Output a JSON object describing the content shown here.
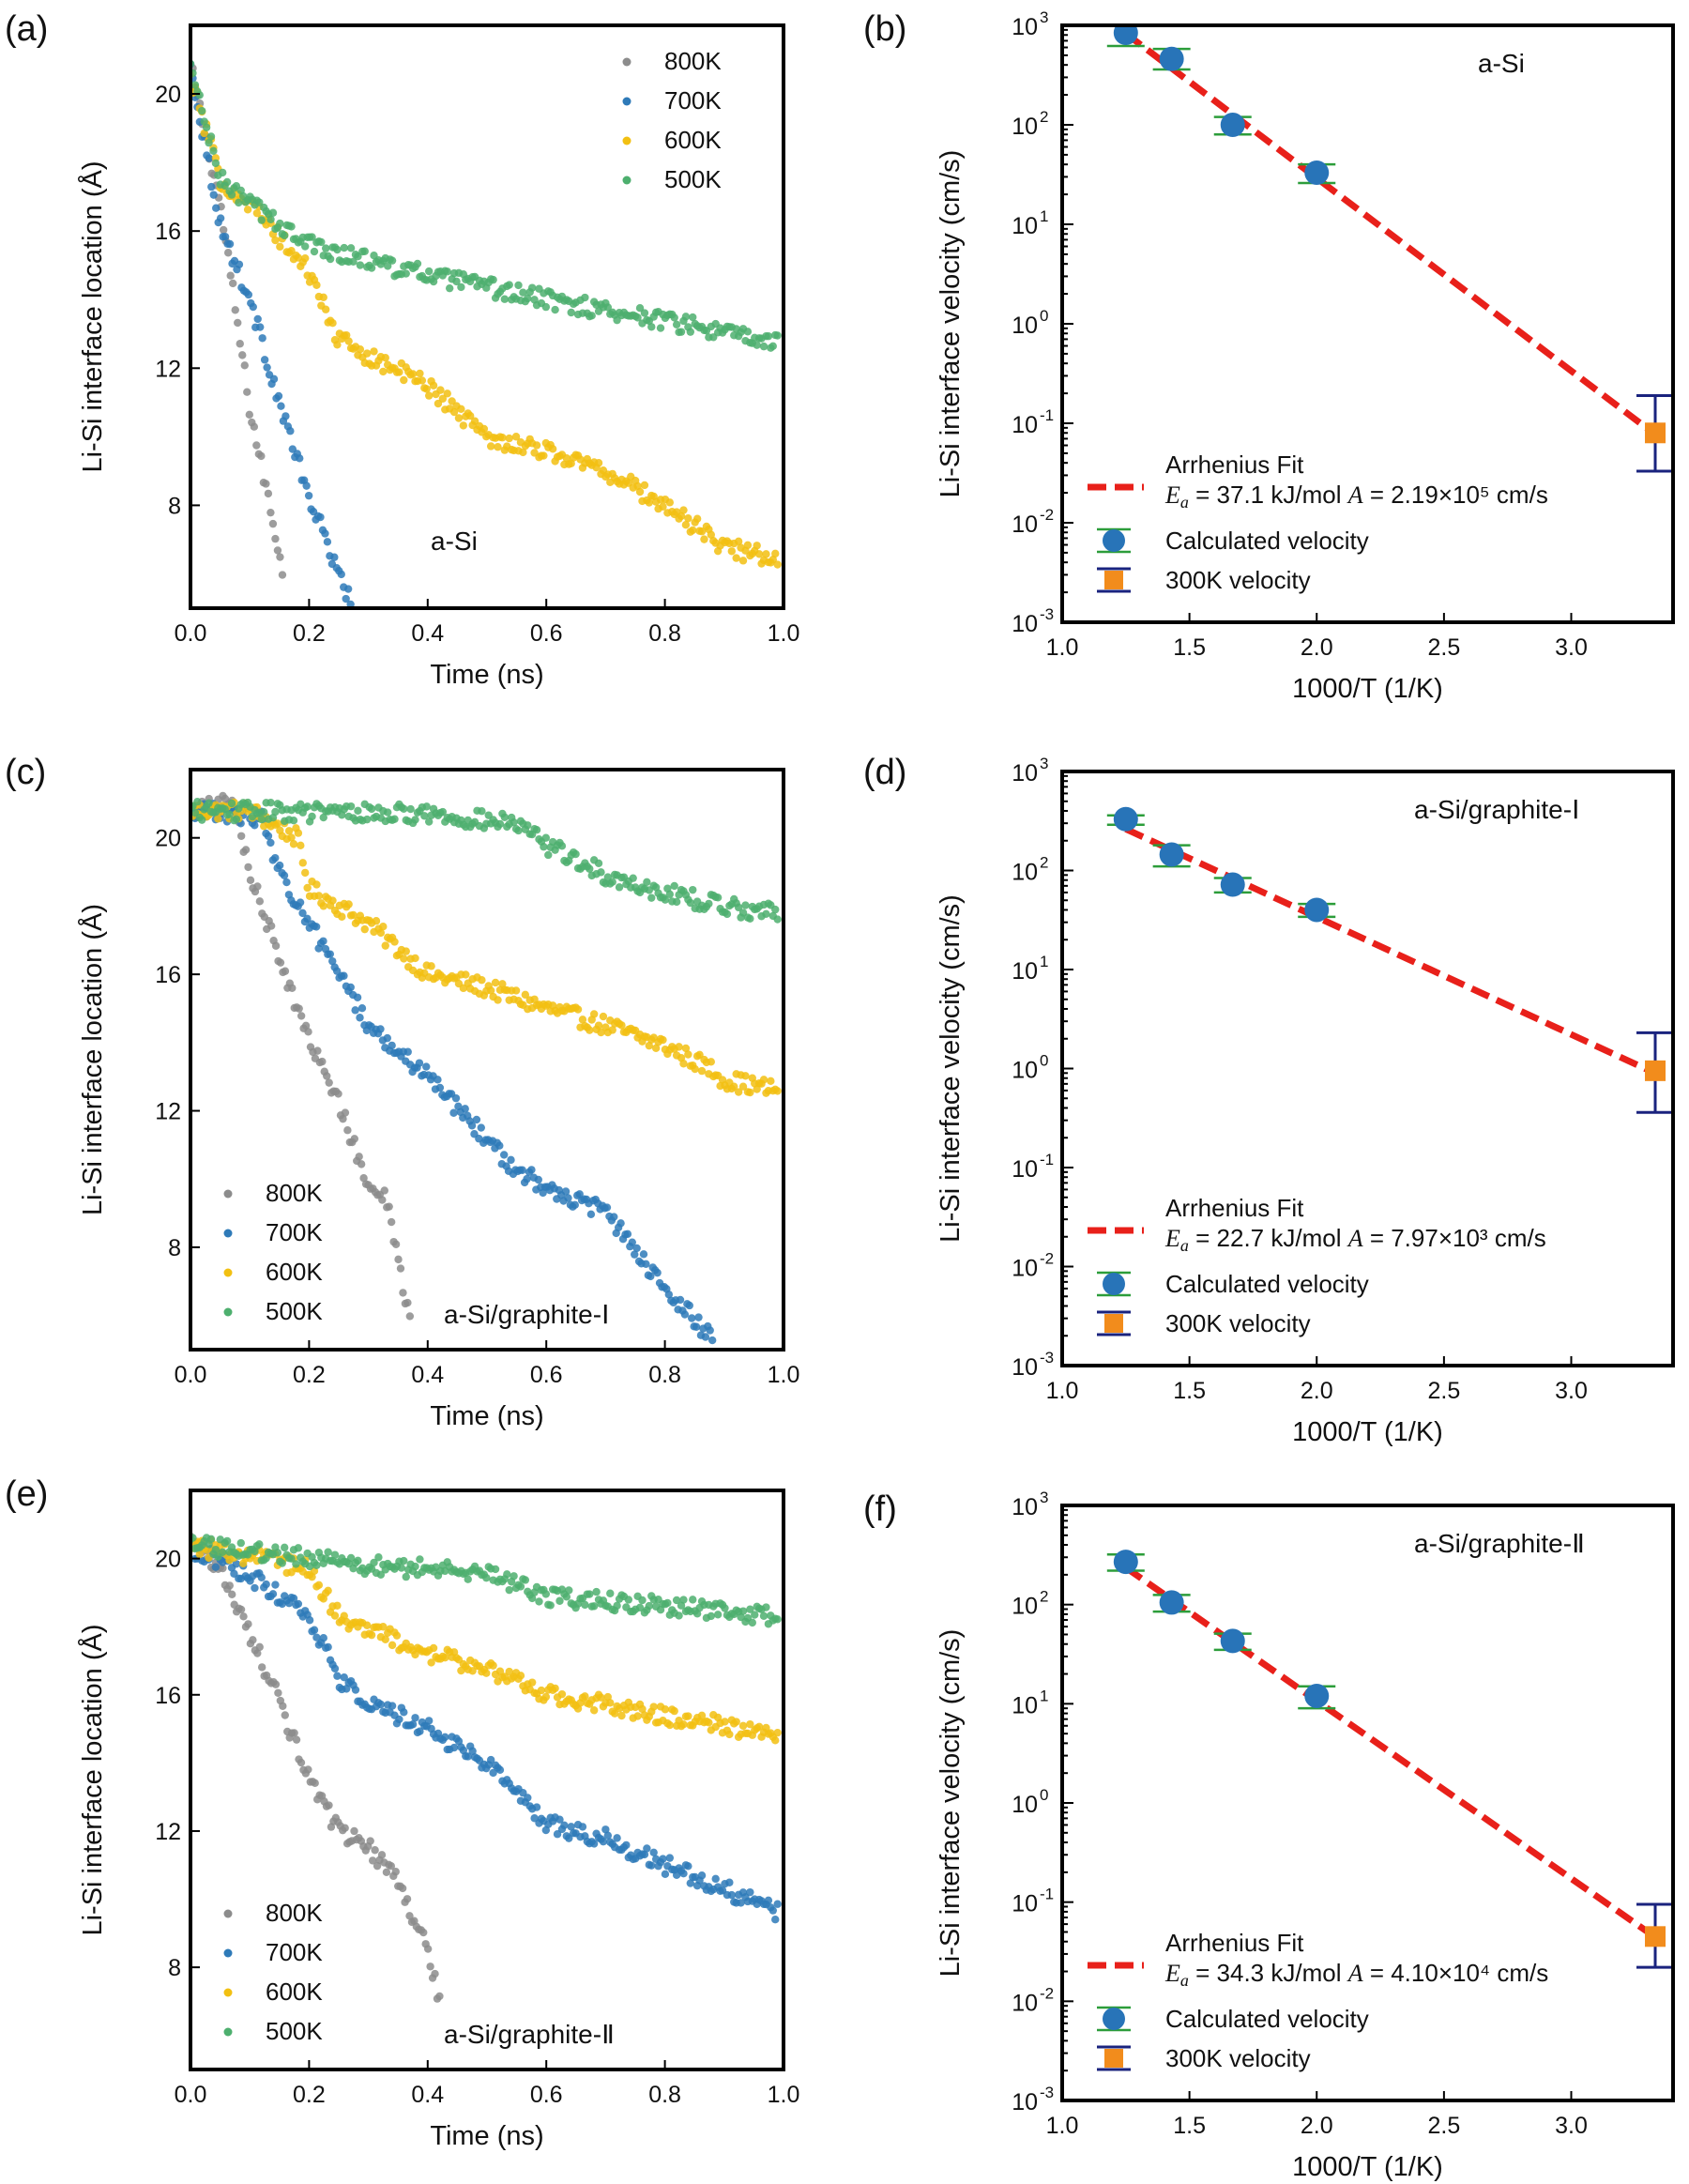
{
  "chart_data": [
    {
      "panel": "(a)",
      "type": "scatter",
      "xlabel": "Time (ns)",
      "ylabel": "Li-Si interface location (Å)",
      "xlim": [
        0.0,
        1.0
      ],
      "ylim": [
        5.0,
        22.0
      ],
      "xticks": [
        "0.0",
        "0.2",
        "0.4",
        "0.6",
        "0.8",
        "1.0"
      ],
      "yticks": [
        "8",
        "12",
        "16",
        "20"
      ],
      "annotation": "a-Si",
      "legend_placement": "top-right",
      "series": [
        {
          "name": "800K",
          "color": "#8c8c8c",
          "t_end": 0.155,
          "anchors": [
            [
              0.0,
              20.8
            ],
            [
              0.05,
              16.8
            ],
            [
              0.1,
              10.8
            ],
            [
              0.155,
              6.2
            ]
          ]
        },
        {
          "name": "700K",
          "color": "#2e7ab8",
          "t_end": 0.27,
          "anchors": [
            [
              0.0,
              20.8
            ],
            [
              0.05,
              16.2
            ],
            [
              0.1,
              14.0
            ],
            [
              0.15,
              11.0
            ],
            [
              0.2,
              8.2
            ],
            [
              0.27,
              5.2
            ]
          ]
        },
        {
          "name": "600K",
          "color": "#f2c012",
          "t_end": 0.99,
          "anchors": [
            [
              0.0,
              20.5
            ],
            [
              0.05,
              17.5
            ],
            [
              0.1,
              16.8
            ],
            [
              0.2,
              14.8
            ],
            [
              0.25,
              12.8
            ],
            [
              0.4,
              11.5
            ],
            [
              0.5,
              10.0
            ],
            [
              0.6,
              9.6
            ],
            [
              0.7,
              9.0
            ],
            [
              0.8,
              8.0
            ],
            [
              0.9,
              6.8
            ],
            [
              0.99,
              6.4
            ]
          ]
        },
        {
          "name": "500K",
          "color": "#4daf6e",
          "t_end": 0.99,
          "anchors": [
            [
              0.0,
              20.8
            ],
            [
              0.05,
              17.5
            ],
            [
              0.1,
              16.8
            ],
            [
              0.2,
              15.6
            ],
            [
              0.4,
              14.7
            ],
            [
              0.6,
              14.0
            ],
            [
              0.8,
              13.4
            ],
            [
              0.99,
              12.7
            ]
          ]
        }
      ]
    },
    {
      "panel": "(b)",
      "type": "scatter",
      "xlabel": "1000/T (1/K)",
      "ylabel": "Li-Si interface velocity (cm/s)",
      "xlim": [
        1.0,
        3.4
      ],
      "ylim_log10": [
        -3,
        3
      ],
      "yscale": "log",
      "xticks": [
        "1.0",
        "1.5",
        "2.0",
        "2.5",
        "3.0"
      ],
      "annotation": "a-Si",
      "fit": {
        "label": "Arrhenius Fit",
        "Ea_kJ_per_mol": 37.1,
        "A_cm_per_s": 219000,
        "Ea_text": " = 37.1 kJ/mol  ",
        "A_text": " = 2.19×10⁵ cm/s",
        "x_range": [
          1.25,
          3.33
        ]
      },
      "calculated": {
        "label": "Calculated velocity",
        "x": [
          1.25,
          1.43,
          1.67,
          2.0
        ],
        "y": [
          840,
          460,
          100,
          33
        ],
        "y_low": [
          620,
          360,
          80,
          26
        ],
        "y_high": [
          1000,
          580,
          120,
          40
        ]
      },
      "room_temp": {
        "label": "300K velocity",
        "x": 3.33,
        "y": 0.08,
        "y_low": 0.033,
        "y_high": 0.19
      }
    },
    {
      "panel": "(c)",
      "type": "scatter",
      "xlabel": "Time (ns)",
      "ylabel": "Li-Si interface location  (Å)",
      "xlim": [
        0.0,
        1.0
      ],
      "ylim": [
        5.0,
        22.0
      ],
      "xticks": [
        "0.0",
        "0.2",
        "0.4",
        "0.6",
        "0.8",
        "1.0"
      ],
      "yticks": [
        "8",
        "12",
        "16",
        "20"
      ],
      "annotation": "a-Si/graphite-Ⅰ",
      "legend_placement": "bottom-left",
      "series": [
        {
          "name": "800K",
          "color": "#8c8c8c",
          "t_end": 0.37,
          "anchors": [
            [
              0.0,
              20.8
            ],
            [
              0.07,
              21.0
            ],
            [
              0.1,
              19.0
            ],
            [
              0.2,
              14.0
            ],
            [
              0.25,
              12.2
            ],
            [
              0.3,
              9.8
            ],
            [
              0.33,
              9.5
            ],
            [
              0.37,
              5.8
            ]
          ]
        },
        {
          "name": "700K",
          "color": "#2e7ab8",
          "t_end": 0.88,
          "anchors": [
            [
              0.0,
              20.8
            ],
            [
              0.12,
              20.6
            ],
            [
              0.15,
              19.0
            ],
            [
              0.2,
              17.5
            ],
            [
              0.3,
              14.5
            ],
            [
              0.4,
              13.0
            ],
            [
              0.5,
              11.2
            ],
            [
              0.55,
              10.2
            ],
            [
              0.7,
              9.0
            ],
            [
              0.8,
              6.8
            ],
            [
              0.88,
              5.3
            ]
          ]
        },
        {
          "name": "600K",
          "color": "#f2c012",
          "t_end": 0.99,
          "anchors": [
            [
              0.0,
              20.8
            ],
            [
              0.1,
              20.8
            ],
            [
              0.18,
              20.0
            ],
            [
              0.2,
              18.5
            ],
            [
              0.3,
              17.5
            ],
            [
              0.4,
              16.0
            ],
            [
              0.5,
              15.6
            ],
            [
              0.6,
              15.0
            ],
            [
              0.7,
              14.5
            ],
            [
              0.8,
              13.9
            ],
            [
              0.88,
              13.2
            ],
            [
              0.9,
              12.9
            ],
            [
              0.99,
              12.6
            ]
          ]
        },
        {
          "name": "500K",
          "color": "#4daf6e",
          "t_end": 0.99,
          "anchors": [
            [
              0.0,
              20.8
            ],
            [
              0.4,
              20.7
            ],
            [
              0.55,
              20.4
            ],
            [
              0.6,
              19.8
            ],
            [
              0.7,
              18.9
            ],
            [
              0.8,
              18.4
            ],
            [
              0.9,
              18.0
            ],
            [
              0.99,
              17.8
            ]
          ]
        }
      ]
    },
    {
      "panel": "(d)",
      "type": "scatter",
      "xlabel": "1000/T (1/K)",
      "ylabel": "Li-Si interface velocity (cm/s)",
      "xlim": [
        1.0,
        3.4
      ],
      "ylim_log10": [
        -3,
        3
      ],
      "yscale": "log",
      "xticks": [
        "1.0",
        "1.5",
        "2.0",
        "2.5",
        "3.0"
      ],
      "annotation": "a-Si/graphite-Ⅰ",
      "fit": {
        "label": "Arrhenius Fit",
        "Ea_kJ_per_mol": 22.7,
        "A_cm_per_s": 7970,
        "Ea_text": " = 22.7 kJ/mol  ",
        "A_text": " = 7.97×10³ cm/s",
        "x_range": [
          1.25,
          3.33
        ]
      },
      "calculated": {
        "label": "Calculated velocity",
        "x": [
          1.25,
          1.43,
          1.67,
          2.0
        ],
        "y": [
          330,
          145,
          72,
          40
        ],
        "y_low": [
          290,
          110,
          60,
          34
        ],
        "y_high": [
          360,
          180,
          84,
          46
        ]
      },
      "room_temp": {
        "label": "300K velocity",
        "x": 3.33,
        "y": 0.95,
        "y_low": 0.36,
        "y_high": 2.3
      }
    },
    {
      "panel": "(e)",
      "type": "scatter",
      "xlabel": "Time (ns)",
      "ylabel": "Li-Si interface location  (Å)",
      "xlim": [
        0.0,
        1.0
      ],
      "ylim": [
        5.0,
        22.0
      ],
      "xticks": [
        "0.0",
        "0.2",
        "0.4",
        "0.6",
        "0.8",
        "1.0"
      ],
      "yticks": [
        "8",
        "12",
        "16",
        "20"
      ],
      "annotation": "a-Si/graphite-Ⅱ",
      "legend_placement": "bottom-left",
      "series": [
        {
          "name": "800K",
          "color": "#8c8c8c",
          "t_end": 0.42,
          "anchors": [
            [
              0.0,
              20.5
            ],
            [
              0.05,
              19.8
            ],
            [
              0.1,
              17.8
            ],
            [
              0.15,
              15.8
            ],
            [
              0.2,
              13.5
            ],
            [
              0.25,
              12.0
            ],
            [
              0.3,
              11.5
            ],
            [
              0.35,
              10.5
            ],
            [
              0.4,
              8.5
            ],
            [
              0.42,
              7.0
            ]
          ]
        },
        {
          "name": "700K",
          "color": "#2e7ab8",
          "t_end": 0.99,
          "anchors": [
            [
              0.0,
              20.3
            ],
            [
              0.1,
              19.5
            ],
            [
              0.2,
              18.3
            ],
            [
              0.25,
              16.5
            ],
            [
              0.3,
              15.8
            ],
            [
              0.4,
              15.0
            ],
            [
              0.5,
              14.0
            ],
            [
              0.6,
              12.2
            ],
            [
              0.7,
              11.8
            ],
            [
              0.8,
              11.0
            ],
            [
              0.9,
              10.3
            ],
            [
              0.99,
              9.6
            ]
          ]
        },
        {
          "name": "600K",
          "color": "#f2c012",
          "t_end": 0.99,
          "anchors": [
            [
              0.0,
              20.4
            ],
            [
              0.2,
              19.7
            ],
            [
              0.25,
              18.3
            ],
            [
              0.4,
              17.2
            ],
            [
              0.5,
              16.8
            ],
            [
              0.6,
              16.0
            ],
            [
              0.7,
              15.7
            ],
            [
              0.8,
              15.4
            ],
            [
              0.99,
              14.8
            ]
          ]
        },
        {
          "name": "500K",
          "color": "#4daf6e",
          "t_end": 0.99,
          "anchors": [
            [
              0.0,
              20.4
            ],
            [
              0.3,
              19.8
            ],
            [
              0.5,
              19.6
            ],
            [
              0.6,
              18.9
            ],
            [
              0.8,
              18.6
            ],
            [
              0.99,
              18.3
            ]
          ]
        }
      ]
    },
    {
      "panel": "(f)",
      "type": "scatter",
      "xlabel": "1000/T (1/K)",
      "ylabel": "Li-Si interface velocity (cm/s)",
      "xlim": [
        1.0,
        3.4
      ],
      "ylim_log10": [
        -3,
        3
      ],
      "yscale": "log",
      "xticks": [
        "1.0",
        "1.5",
        "2.0",
        "2.5",
        "3.0"
      ],
      "annotation": "a-Si/graphite-Ⅱ",
      "fit": {
        "label": "Arrhenius Fit",
        "Ea_kJ_per_mol": 34.3,
        "A_cm_per_s": 41000,
        "Ea_text": " = 34.3 kJ/mol  ",
        "A_text": " = 4.10×10⁴ cm/s",
        "x_range": [
          1.25,
          3.33
        ]
      },
      "calculated": {
        "label": "Calculated velocity",
        "x": [
          1.25,
          1.43,
          1.67,
          2.0
        ],
        "y": [
          270,
          105,
          43,
          12
        ],
        "y_low": [
          220,
          85,
          35,
          9
        ],
        "y_high": [
          320,
          125,
          51,
          15
        ]
      },
      "room_temp": {
        "label": "300K velocity",
        "x": 3.33,
        "y": 0.045,
        "y_low": 0.022,
        "y_high": 0.095
      }
    }
  ],
  "style": {
    "fit_color": "#e8201a",
    "calc_marker_color": "#2874b8",
    "calc_errorbar_color": "#2c9d3a",
    "rt_marker_color": "#f28c1c",
    "rt_errorbar_color": "#1a237e"
  }
}
